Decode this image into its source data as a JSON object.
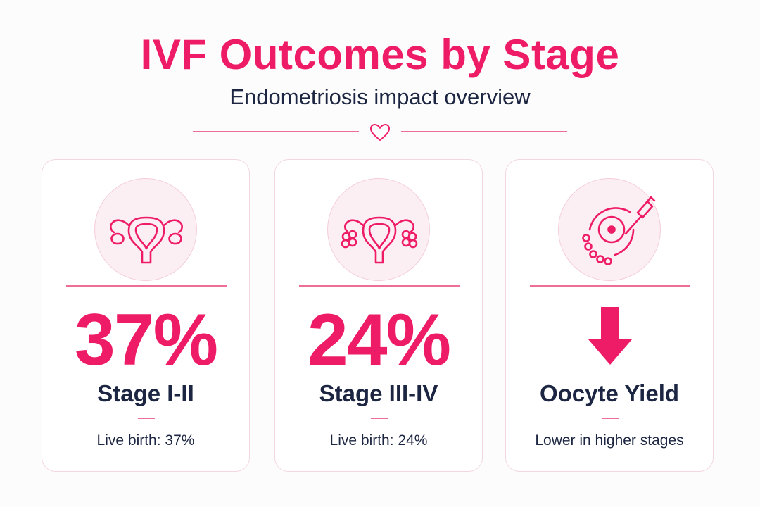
{
  "header": {
    "title": "IVF Outcomes by Stage",
    "subtitle": "Endometriosis impact overview",
    "divider_icon": "heart-icon"
  },
  "colors": {
    "accent": "#ee1c66",
    "text": "#1c2541",
    "card_border": "#f3d7df",
    "icon_bg": "#fbeff3"
  },
  "cards": [
    {
      "icon": "uterus-icon",
      "value": "37%",
      "label": "Stage I-II",
      "desc": "Live birth: 37%"
    },
    {
      "icon": "uterus-with-cysts-icon",
      "value": "24%",
      "label": "Stage III-IV",
      "desc": "Live birth: 24%"
    },
    {
      "icon": "oocyte-retrieval-icon",
      "value_icon": "down-arrow-icon",
      "label": "Oocyte Yield",
      "desc": "Lower in higher stages"
    }
  ]
}
